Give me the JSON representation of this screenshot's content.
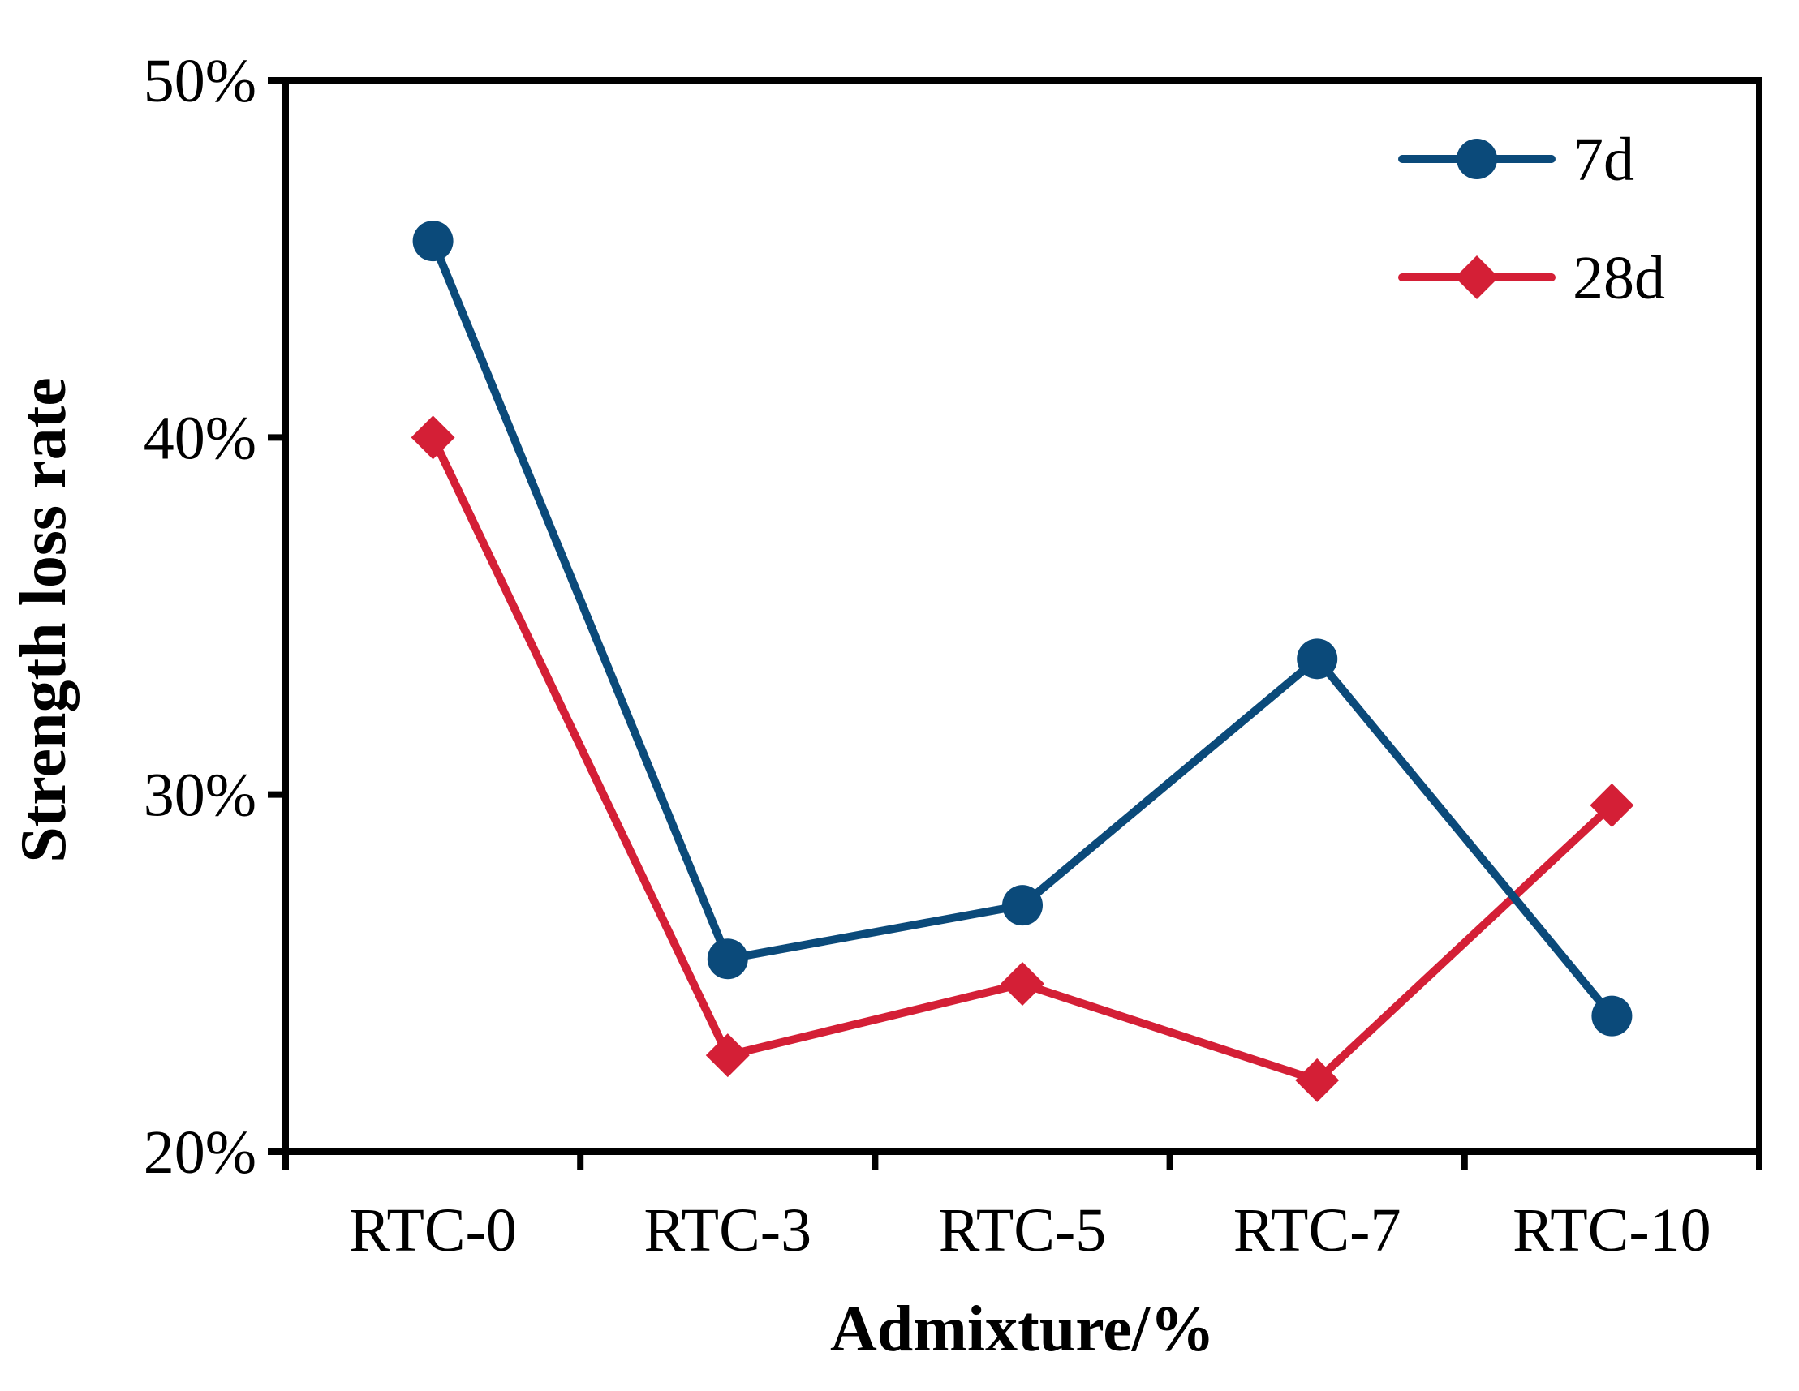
{
  "chart_data": {
    "type": "line",
    "title": "",
    "xlabel": "Admixture/%",
    "ylabel": "Strength loss rate",
    "categories": [
      "RTC-0",
      "RTC-3",
      "RTC-5",
      "RTC-7",
      "RTC-10"
    ],
    "ylim": [
      0.2,
      0.5
    ],
    "yticks": [
      0.2,
      0.3,
      0.4,
      0.5
    ],
    "ytick_labels": [
      "20%",
      "30%",
      "40%",
      "50%"
    ],
    "grid": false,
    "legend_position": "top-right",
    "series": [
      {
        "name": "7d",
        "color": "#0b4a7a",
        "marker": "circle",
        "values": [
          0.455,
          0.254,
          0.269,
          0.338,
          0.238
        ]
      },
      {
        "name": "28d",
        "color": "#d41f36",
        "marker": "diamond",
        "values": [
          0.4,
          0.227,
          0.247,
          0.22,
          0.297
        ]
      }
    ]
  }
}
